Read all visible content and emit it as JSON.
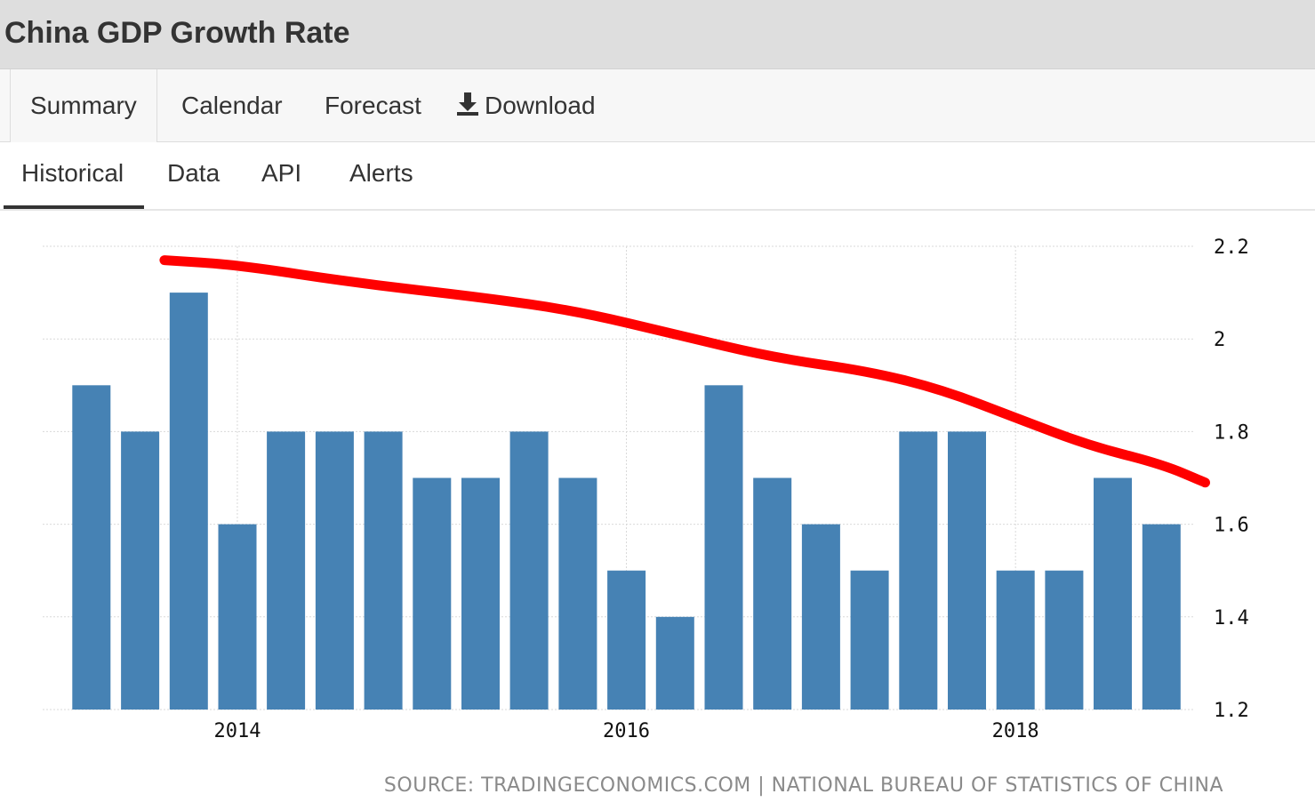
{
  "header": {
    "title": "China GDP Growth Rate"
  },
  "tabs": [
    {
      "label": "Summary",
      "active": true
    },
    {
      "label": "Calendar",
      "active": false
    },
    {
      "label": "Forecast",
      "active": false
    },
    {
      "label": "Download",
      "active": false,
      "icon": "download-icon"
    }
  ],
  "subtabs": [
    {
      "label": "Historical",
      "active": true
    },
    {
      "label": "Data",
      "active": false
    },
    {
      "label": "API",
      "active": false
    },
    {
      "label": "Alerts",
      "active": false
    }
  ],
  "colors": {
    "bar": "#4682b4",
    "trend_annotation": "#ff0000",
    "grid": "#d9d9d9"
  },
  "chart_data": {
    "type": "bar",
    "title": "",
    "xlabel": "",
    "ylabel": "",
    "ylim": [
      1.2,
      2.2
    ],
    "y_ticks": [
      2.2,
      2.0,
      1.8,
      1.6,
      1.4,
      1.2
    ],
    "y_tick_labels": [
      "2.2",
      "2",
      "1.8",
      "1.6",
      "1.4",
      "1.2"
    ],
    "y_axis_position": "right",
    "x_tick_labels": [
      "2014",
      "2016",
      "2018"
    ],
    "x_tick_positions": [
      3.5,
      11.5,
      19.5
    ],
    "grid": true,
    "values": [
      1.9,
      1.8,
      2.1,
      1.6,
      1.8,
      1.8,
      1.8,
      1.7,
      1.7,
      1.8,
      1.7,
      1.5,
      1.4,
      1.9,
      1.7,
      1.6,
      1.5,
      1.8,
      1.8,
      1.5,
      1.5,
      1.7,
      1.6
    ],
    "annotation": {
      "type": "hand-drawn declining trend line",
      "points": [
        [
          2.0,
          2.17
        ],
        [
          3.5,
          2.16
        ],
        [
          6.0,
          2.12
        ],
        [
          8.5,
          2.09
        ],
        [
          10.5,
          2.06
        ],
        [
          12.5,
          2.01
        ],
        [
          14.5,
          1.96
        ],
        [
          16.5,
          1.93
        ],
        [
          18.0,
          1.89
        ],
        [
          19.5,
          1.83
        ],
        [
          21.0,
          1.77
        ],
        [
          22.5,
          1.73
        ],
        [
          23.4,
          1.69
        ]
      ]
    },
    "source": "SOURCE: TRADINGECONOMICS.COM | NATIONAL BUREAU OF STATISTICS OF CHINA"
  }
}
